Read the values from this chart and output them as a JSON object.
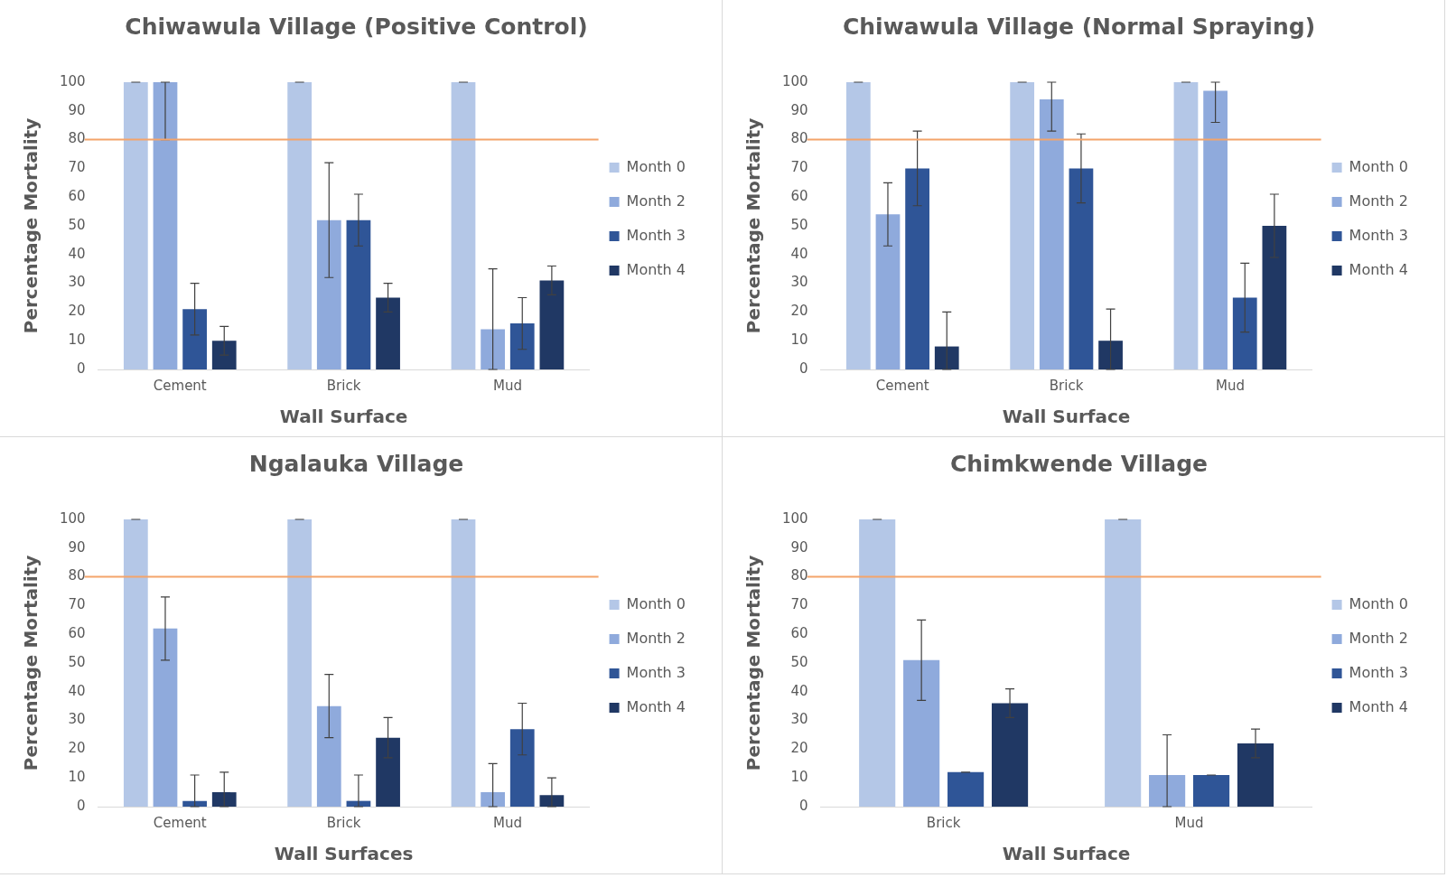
{
  "chart_data": [
    {
      "type": "bar",
      "title": "Chiwawula Village (Positive Control)",
      "xlabel": "Wall Surface",
      "ylabel": "Percentage Mortality",
      "categories": [
        "Cement",
        "Brick",
        "Mud"
      ],
      "ylim": [
        0,
        100
      ],
      "yticks": [
        0,
        10,
        20,
        30,
        40,
        50,
        60,
        70,
        80,
        90,
        100
      ],
      "grid": false,
      "legend": "right",
      "ref_lines": [
        {
          "axis": "y",
          "value": 80,
          "color": "#f4a46a"
        }
      ],
      "series": [
        {
          "name": "Month 0",
          "color": "#b4c7e7",
          "values": [
            100,
            100,
            100
          ],
          "errors": [
            0,
            0,
            0
          ]
        },
        {
          "name": "Month 2",
          "color": "#8faadc",
          "values": [
            100,
            52,
            14
          ],
          "errors": [
            [
              80,
              100
            ],
            20,
            [
              0,
              35
            ]
          ]
        },
        {
          "name": "Month 3",
          "color": "#2f5597",
          "values": [
            21,
            52,
            16
          ],
          "errors": [
            9,
            9,
            9
          ]
        },
        {
          "name": "Month 4",
          "color": "#203864",
          "values": [
            10,
            25,
            31
          ],
          "errors": [
            5,
            5,
            5
          ]
        }
      ]
    },
    {
      "type": "bar",
      "title": "Chiwawula Village (Normal Spraying)",
      "xlabel": "Wall Surface",
      "ylabel": "Percentage Mortality",
      "categories": [
        "Cement",
        "Brick",
        "Mud"
      ],
      "ylim": [
        0,
        100
      ],
      "yticks": [
        0,
        10,
        20,
        30,
        40,
        50,
        60,
        70,
        80,
        90,
        100
      ],
      "grid": false,
      "legend": "right",
      "ref_lines": [
        {
          "axis": "y",
          "value": 80,
          "color": "#f4a46a"
        }
      ],
      "series": [
        {
          "name": "Month 0",
          "color": "#b4c7e7",
          "values": [
            100,
            100,
            100
          ],
          "errors": [
            0,
            0,
            0
          ]
        },
        {
          "name": "Month 2",
          "color": "#8faadc",
          "values": [
            54,
            94,
            97
          ],
          "errors": [
            11,
            [
              83,
              100
            ],
            [
              86,
              100
            ]
          ]
        },
        {
          "name": "Month 3",
          "color": "#2f5597",
          "values": [
            70,
            70,
            25
          ],
          "errors": [
            13,
            12,
            12
          ]
        },
        {
          "name": "Month 4",
          "color": "#203864",
          "values": [
            8,
            10,
            50
          ],
          "errors": [
            [
              0,
              20
            ],
            [
              0,
              21
            ],
            11
          ]
        }
      ]
    },
    {
      "type": "bar",
      "title": "Ngalauka Village",
      "xlabel": "Wall Surfaces",
      "ylabel": "Percentage Mortality",
      "categories": [
        "Cement",
        "Brick",
        "Mud"
      ],
      "ylim": [
        0,
        100
      ],
      "yticks": [
        0,
        10,
        20,
        30,
        40,
        50,
        60,
        70,
        80,
        90,
        100
      ],
      "grid": false,
      "legend": "right",
      "ref_lines": [
        {
          "axis": "y",
          "value": 80,
          "color": "#f4a46a"
        }
      ],
      "series": [
        {
          "name": "Month 0",
          "color": "#b4c7e7",
          "values": [
            100,
            100,
            100
          ],
          "errors": [
            0,
            0,
            0
          ]
        },
        {
          "name": "Month 2",
          "color": "#8faadc",
          "values": [
            62,
            35,
            5
          ],
          "errors": [
            11,
            11,
            [
              0,
              15
            ]
          ]
        },
        {
          "name": "Month 3",
          "color": "#2f5597",
          "values": [
            2,
            2,
            27
          ],
          "errors": [
            [
              0,
              11
            ],
            [
              0,
              11
            ],
            9
          ]
        },
        {
          "name": "Month 4",
          "color": "#203864",
          "values": [
            5,
            24,
            4
          ],
          "errors": [
            [
              0,
              12
            ],
            7,
            [
              0,
              10
            ]
          ]
        }
      ]
    },
    {
      "type": "bar",
      "title": "Chimkwende Village",
      "xlabel": "Wall Surface",
      "ylabel": "Percentage Mortality",
      "categories": [
        "Brick",
        "Mud"
      ],
      "ylim": [
        0,
        100
      ],
      "yticks": [
        0,
        10,
        20,
        30,
        40,
        50,
        60,
        70,
        80,
        90,
        100
      ],
      "grid": false,
      "legend": "right",
      "ref_lines": [
        {
          "axis": "y",
          "value": 80,
          "color": "#f4a46a"
        }
      ],
      "series": [
        {
          "name": "Month 0",
          "color": "#b4c7e7",
          "values": [
            100,
            100
          ],
          "errors": [
            0,
            0
          ]
        },
        {
          "name": "Month 2",
          "color": "#8faadc",
          "values": [
            51,
            11
          ],
          "errors": [
            14,
            [
              0,
              25
            ]
          ]
        },
        {
          "name": "Month 3",
          "color": "#2f5597",
          "values": [
            12,
            11
          ],
          "errors": [
            0,
            0
          ]
        },
        {
          "name": "Month 4",
          "color": "#203864",
          "values": [
            36,
            22
          ],
          "errors": [
            5,
            5
          ]
        }
      ]
    }
  ]
}
